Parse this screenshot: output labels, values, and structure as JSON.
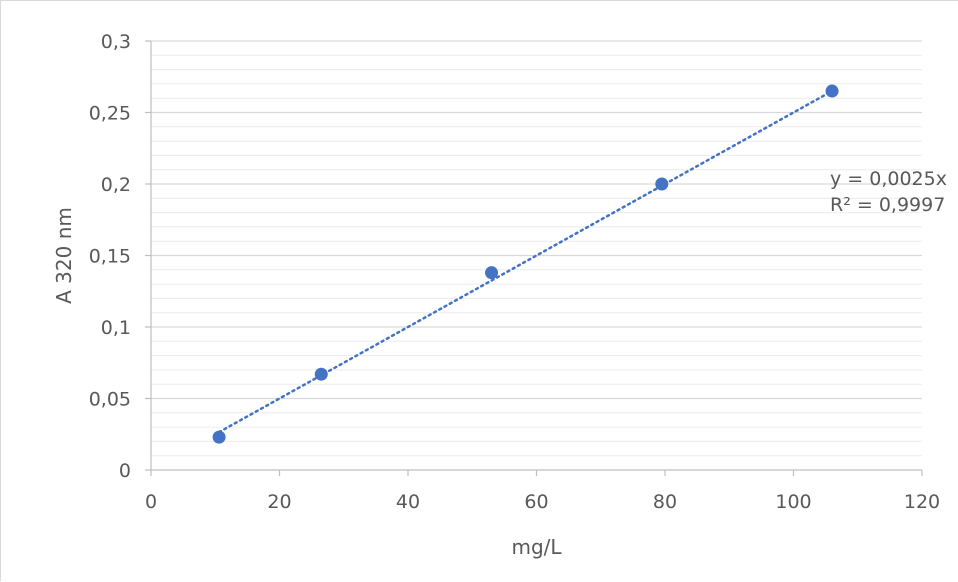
{
  "chart_data": {
    "type": "scatter",
    "xlabel": "mg/L",
    "ylabel": "A 320 nm",
    "xlim": [
      0,
      120
    ],
    "ylim": [
      0,
      0.3
    ],
    "x_ticks": [
      0,
      20,
      40,
      60,
      80,
      100,
      120
    ],
    "x_tick_labels": [
      "0",
      "20",
      "40",
      "60",
      "80",
      "100",
      "120"
    ],
    "y_ticks": [
      0,
      0.05,
      0.1,
      0.15,
      0.2,
      0.25,
      0.3
    ],
    "y_tick_labels": [
      "0",
      "0,05",
      "0,1",
      "0,15",
      "0,2",
      "0,25",
      "0,3"
    ],
    "grid": true,
    "minor_grid": true,
    "series": [
      {
        "x": [
          10.6,
          26.5,
          53.0,
          79.5,
          106.0
        ],
        "y": [
          0.023,
          0.067,
          0.138,
          0.2,
          0.265
        ],
        "color": "#4472c4",
        "marker": "circle"
      }
    ],
    "trendline": {
      "type": "linear",
      "slope": 0.0025,
      "color": "#4472c4",
      "style": "dotted",
      "x_range": [
        10.6,
        106.0
      ]
    },
    "annotations": {
      "equation": "y = 0,0025x",
      "r_squared": "R² = 0,9997"
    }
  }
}
